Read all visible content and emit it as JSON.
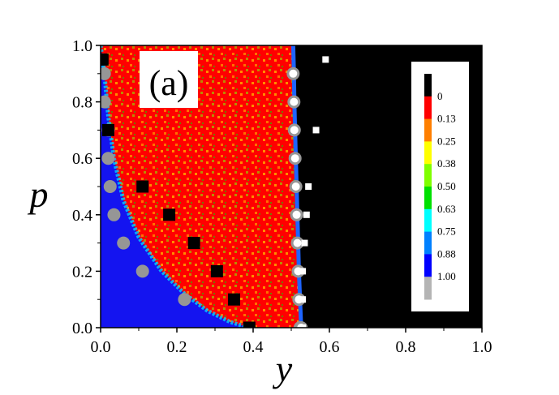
{
  "chart_data": {
    "type": "heatmap",
    "panel_label": "(a)",
    "xlabel": "y",
    "ylabel": "p",
    "xlim": [
      0.0,
      1.0
    ],
    "ylim": [
      0.0,
      1.0
    ],
    "xticks": [
      "0.0",
      "0.2",
      "0.4",
      "0.6",
      "0.8",
      "1.0"
    ],
    "yticks": [
      "0.0",
      "0.2",
      "0.4",
      "0.6",
      "0.8",
      "1.0"
    ],
    "colorbar": {
      "labels": [
        "0",
        "0.13",
        "0.25",
        "0.38",
        "0.50",
        "0.63",
        "0.75",
        "0.88",
        "1.00"
      ],
      "colors": [
        "#000000",
        "#ff0000",
        "#ff7f00",
        "#ffff00",
        "#7fff00",
        "#00e000",
        "#00ffff",
        "#0080ff",
        "#0000ff",
        "#b4b4b4"
      ]
    },
    "regions": {
      "left_color": "#1414f0",
      "middle_color": "#ff0000",
      "right_color": "#000000",
      "left_boundary": [
        [
          0.0,
          1.0
        ],
        [
          0.01,
          0.9
        ],
        [
          0.02,
          0.75
        ],
        [
          0.035,
          0.6
        ],
        [
          0.06,
          0.45
        ],
        [
          0.1,
          0.32
        ],
        [
          0.16,
          0.2
        ],
        [
          0.22,
          0.12
        ],
        [
          0.28,
          0.06
        ],
        [
          0.34,
          0.02
        ],
        [
          0.39,
          0.0
        ]
      ],
      "right_boundary": [
        [
          0.505,
          1.0
        ],
        [
          0.507,
          0.9
        ],
        [
          0.508,
          0.8
        ],
        [
          0.51,
          0.7
        ],
        [
          0.512,
          0.6
        ],
        [
          0.514,
          0.5
        ],
        [
          0.516,
          0.4
        ],
        [
          0.518,
          0.3
        ],
        [
          0.52,
          0.2
        ],
        [
          0.523,
          0.1
        ],
        [
          0.526,
          0.0
        ]
      ]
    },
    "series": [
      {
        "marker": "gray-circle",
        "color": "#969696",
        "x": [
          0.01,
          0.01,
          0.02,
          0.02,
          0.025,
          0.035,
          0.06,
          0.11,
          0.22
        ],
        "y": [
          0.9,
          0.8,
          0.7,
          0.6,
          0.5,
          0.4,
          0.3,
          0.2,
          0.1
        ]
      },
      {
        "marker": "black-square",
        "color": "#000000",
        "x": [
          0.005,
          0.02,
          0.11,
          0.18,
          0.245,
          0.305,
          0.35,
          0.39
        ],
        "y": [
          0.95,
          0.7,
          0.5,
          0.4,
          0.3,
          0.2,
          0.1,
          0.0
        ]
      },
      {
        "marker": "white-open-circle",
        "color": "#969696",
        "x": [
          0.505,
          0.507,
          0.508,
          0.51,
          0.512,
          0.514,
          0.516,
          0.518,
          0.52,
          0.523,
          0.526
        ],
        "y": [
          0.9,
          0.8,
          0.7,
          0.6,
          0.5,
          0.4,
          0.3,
          0.2,
          0.1,
          0.0,
          0.0
        ]
      },
      {
        "marker": "white-square",
        "color": "#ffffff",
        "x": [
          0.59,
          0.565,
          0.545,
          0.54,
          0.535,
          0.53,
          0.53,
          0.53
        ],
        "y": [
          0.95,
          0.7,
          0.5,
          0.4,
          0.3,
          0.2,
          0.1,
          0.0
        ]
      }
    ]
  }
}
